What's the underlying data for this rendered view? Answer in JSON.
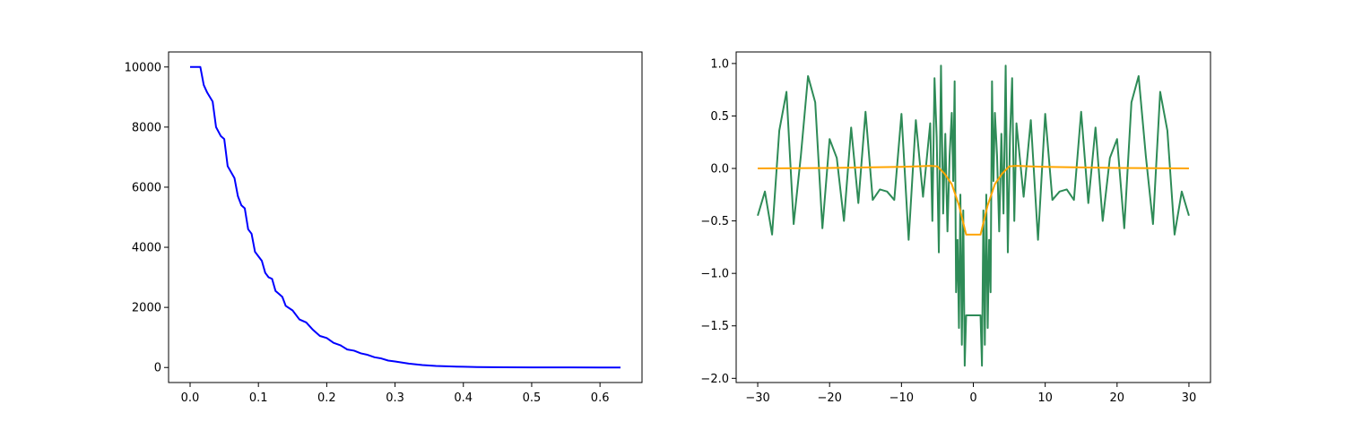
{
  "chart_data": [
    {
      "type": "line",
      "title": "",
      "xlabel": "",
      "ylabel": "",
      "xlim": [
        -0.0315,
        0.6615
      ],
      "ylim": [
        -500,
        10500
      ],
      "grid": false,
      "xticks": [
        0.0,
        0.1,
        0.2,
        0.3,
        0.4,
        0.5,
        0.6
      ],
      "xtick_labels": [
        "0.0",
        "0.1",
        "0.2",
        "0.3",
        "0.4",
        "0.5",
        "0.6"
      ],
      "yticks": [
        0,
        2000,
        4000,
        6000,
        8000,
        10000
      ],
      "ytick_labels": [
        "0",
        "2000",
        "4000",
        "6000",
        "8000",
        "10000"
      ],
      "series": [
        {
          "color": "#0000ff",
          "x": [
            0.0,
            0.015,
            0.02,
            0.025,
            0.033,
            0.038,
            0.045,
            0.05,
            0.055,
            0.065,
            0.07,
            0.075,
            0.08,
            0.085,
            0.09,
            0.095,
            0.1,
            0.105,
            0.11,
            0.115,
            0.12,
            0.125,
            0.13,
            0.135,
            0.14,
            0.15,
            0.16,
            0.17,
            0.18,
            0.19,
            0.2,
            0.21,
            0.22,
            0.23,
            0.24,
            0.25,
            0.26,
            0.27,
            0.28,
            0.29,
            0.3,
            0.32,
            0.34,
            0.36,
            0.38,
            0.4,
            0.42,
            0.44,
            0.46,
            0.5,
            0.55,
            0.6,
            0.63
          ],
          "y": [
            10000,
            10000,
            9400,
            9150,
            8850,
            8000,
            7700,
            7600,
            6700,
            6300,
            5700,
            5400,
            5300,
            4600,
            4450,
            3850,
            3700,
            3550,
            3150,
            3000,
            2950,
            2550,
            2450,
            2350,
            2050,
            1900,
            1600,
            1500,
            1250,
            1050,
            980,
            820,
            740,
            600,
            560,
            470,
            420,
            340,
            300,
            230,
            200,
            130,
            80,
            50,
            35,
            25,
            15,
            10,
            7,
            4,
            2,
            1,
            1
          ]
        }
      ]
    },
    {
      "type": "line",
      "title": "",
      "xlabel": "",
      "ylabel": "",
      "xlim": [
        -33,
        33
      ],
      "ylim": [
        -2.04,
        1.11
      ],
      "grid": false,
      "xticks": [
        -30,
        -20,
        -10,
        0,
        10,
        20,
        30
      ],
      "xtick_labels": [
        "−30",
        "−20",
        "−10",
        "0",
        "10",
        "20",
        "30"
      ],
      "yticks": [
        -2.0,
        -1.5,
        -1.0,
        -0.5,
        0.0,
        0.5,
        1.0
      ],
      "ytick_labels": [
        "−2.0",
        "−1.5",
        "−1.0",
        "−0.5",
        "0.0",
        "0.5",
        "1.0"
      ],
      "series": [
        {
          "color": "#2e8b57",
          "x": [
            -30,
            -29,
            -28,
            -27,
            -26,
            -25,
            -24,
            -23,
            -22,
            -21,
            -20,
            -19,
            -18,
            -17,
            -16,
            -15,
            -14,
            -13,
            -12,
            -11,
            -10,
            -9,
            -8,
            -7,
            -6,
            -5.7,
            -5.4,
            -5.1,
            -4.8,
            -4.5,
            -4.2,
            -3.9,
            -3.6,
            -3.3,
            -3.0,
            -2.8,
            -2.6,
            -2.4,
            -2.2,
            -2.0,
            -1.8,
            -1.6,
            -1.4,
            -1.2,
            -1.0,
            1.0,
            1.2,
            1.4,
            1.6,
            1.8,
            2.0,
            2.2,
            2.4,
            2.6,
            2.8,
            3.0,
            3.3,
            3.6,
            3.9,
            4.2,
            4.5,
            4.8,
            5.1,
            5.4,
            5.7,
            6,
            7,
            8,
            9,
            10,
            11,
            12,
            13,
            14,
            15,
            16,
            17,
            18,
            19,
            20,
            21,
            22,
            23,
            24,
            25,
            26,
            27,
            28,
            29,
            30
          ],
          "y": [
            -0.45,
            -0.22,
            -0.63,
            0.36,
            0.73,
            -0.53,
            0.12,
            0.88,
            0.63,
            -0.57,
            0.28,
            0.1,
            -0.5,
            0.39,
            -0.33,
            0.54,
            -0.3,
            -0.2,
            -0.22,
            -0.3,
            0.52,
            -0.68,
            0.46,
            -0.27,
            0.43,
            -0.5,
            0.86,
            0.3,
            -0.8,
            0.98,
            -0.43,
            0.33,
            -0.6,
            0.12,
            0.53,
            -0.12,
            0.83,
            -1.18,
            -0.68,
            -1.52,
            -0.25,
            -1.68,
            -0.4,
            -1.88,
            -1.4,
            -1.4,
            -1.88,
            -0.4,
            -1.68,
            -0.25,
            -1.52,
            -0.68,
            -1.18,
            0.83,
            -0.12,
            0.53,
            0.12,
            -0.6,
            0.33,
            -0.43,
            0.98,
            -0.8,
            0.3,
            0.86,
            -0.5,
            0.43,
            -0.27,
            0.46,
            -0.68,
            0.52,
            -0.3,
            -0.22,
            -0.2,
            -0.3,
            0.54,
            -0.33,
            0.39,
            -0.5,
            0.1,
            0.28,
            -0.57,
            0.63,
            0.88,
            0.12,
            -0.53,
            0.73,
            0.36,
            -0.63,
            -0.22,
            -0.45
          ]
        },
        {
          "color": "#ffa500",
          "x": [
            -30,
            -20,
            -10,
            -8,
            -6,
            -5,
            -4,
            -3,
            -2,
            -1,
            1,
            2,
            3,
            4,
            5,
            6,
            8,
            10,
            20,
            30
          ],
          "y": [
            0,
            0.005,
            0.015,
            0.02,
            0.025,
            0.02,
            -0.05,
            -0.15,
            -0.35,
            -0.63,
            -0.63,
            -0.35,
            -0.15,
            -0.05,
            0.02,
            0.025,
            0.02,
            0.015,
            0.005,
            0
          ]
        }
      ]
    }
  ]
}
